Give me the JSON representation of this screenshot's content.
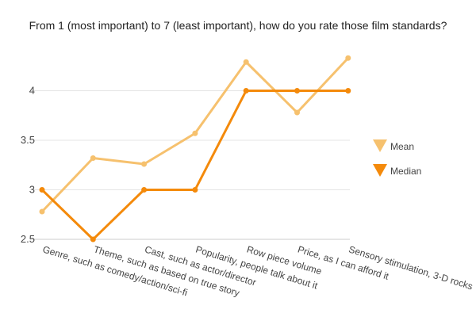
{
  "chart_data": {
    "type": "line",
    "title": "From 1 (most important) to 7 (least important), how do you rate those film standards?",
    "categories": [
      "Genre, such as comedy/action/sci-fi",
      "Theme, such as based on true story",
      "Cast, such as actor/director",
      "Popularity, people talk about it",
      "Row piece volume",
      "Price, as I can afford it",
      "Sensory stimulation, 3-D rocks"
    ],
    "series": [
      {
        "name": "Mean",
        "color": "#f6c16e",
        "values": [
          2.78,
          3.32,
          3.26,
          3.57,
          4.29,
          3.78,
          4.33
        ]
      },
      {
        "name": "Median",
        "color": "#f48a0b",
        "values": [
          3,
          2.5,
          3,
          3,
          4,
          4,
          4
        ]
      }
    ],
    "yticks": [
      "2.5",
      "3",
      "3.5",
      "4"
    ],
    "ylim": [
      2.5,
      4.5
    ],
    "grid": true,
    "legend_position": "right",
    "xlabel": "",
    "ylabel": ""
  }
}
